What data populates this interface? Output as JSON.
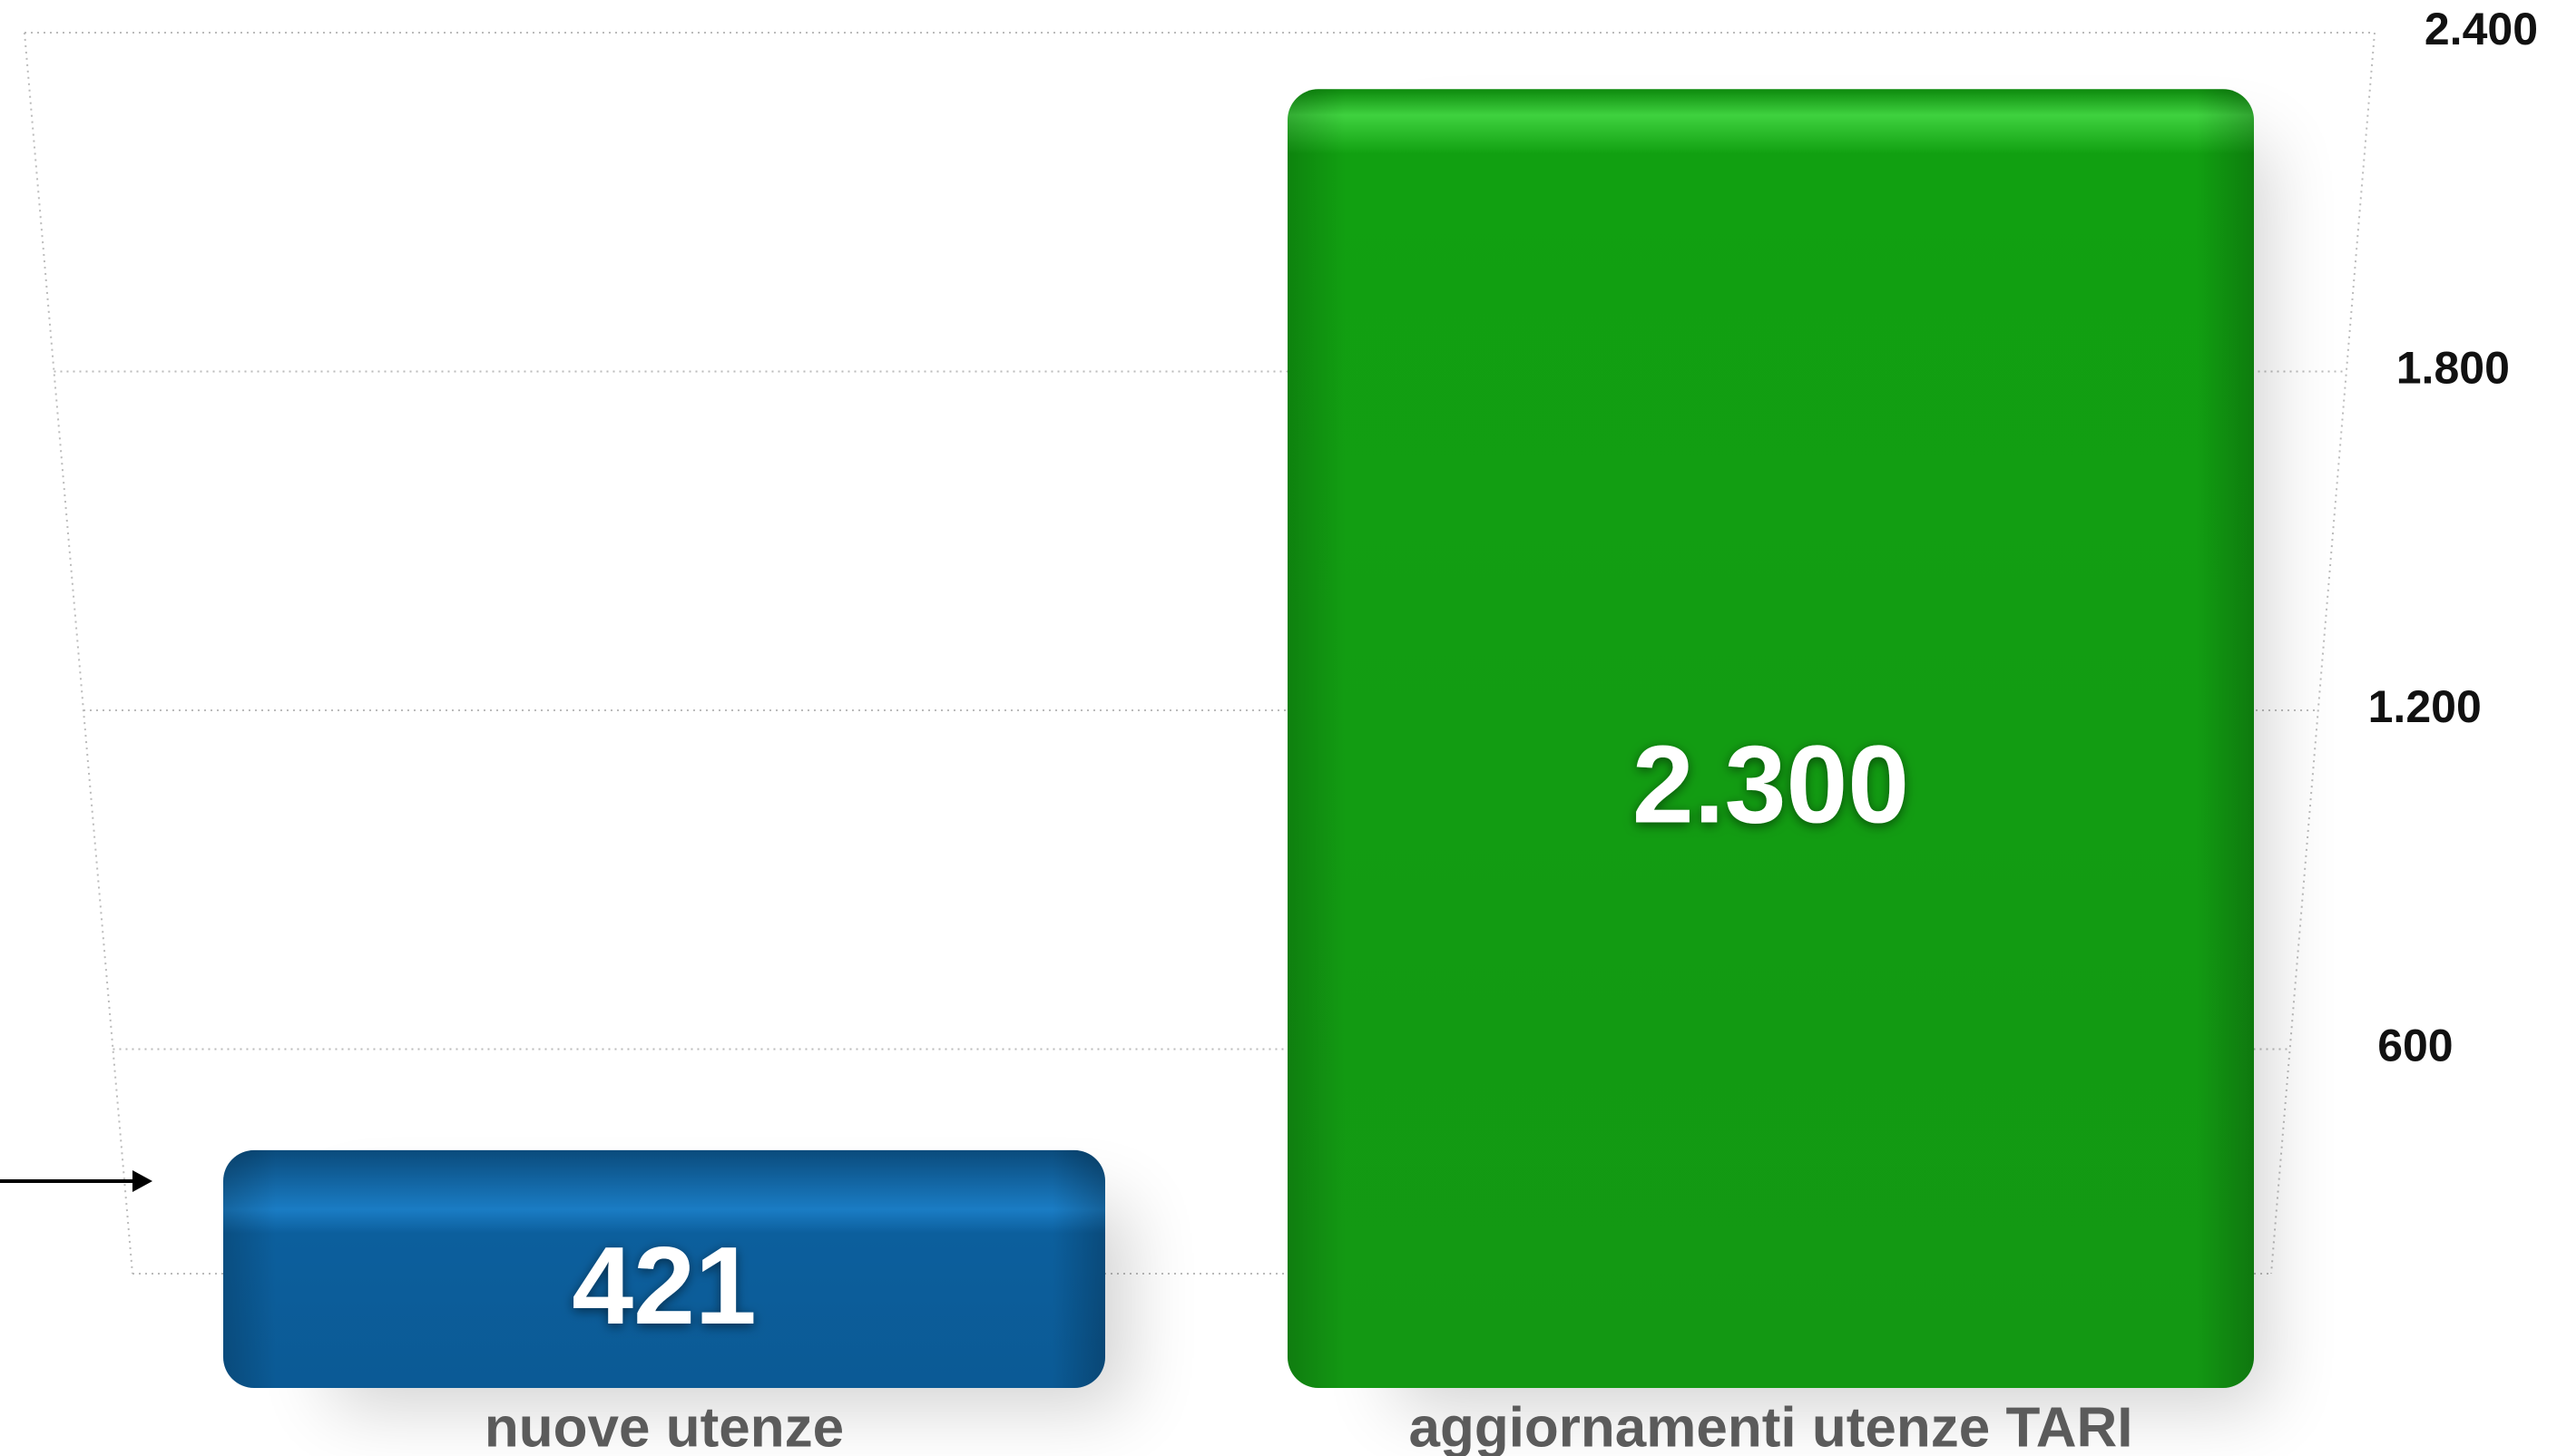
{
  "chart_data": {
    "type": "bar",
    "categories": [
      "nuove utenze",
      "aggiornamenti utenze TARI"
    ],
    "values": [
      421,
      2300
    ],
    "value_labels": [
      "421",
      "2.300"
    ],
    "colors": [
      "#0b5e9a",
      "#119b11"
    ],
    "ylim": [
      0,
      2400
    ],
    "yticks": [
      600,
      {
        "value": 1200,
        "label": "1.200"
      },
      {
        "value": 1800,
        "label": "1.800"
      },
      {
        "value": 2400,
        "label": "2.400"
      }
    ],
    "grid": true
  }
}
